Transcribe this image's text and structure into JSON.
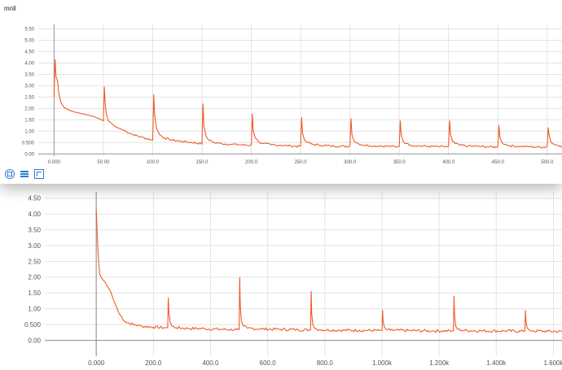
{
  "colors": {
    "series": "#f05a28",
    "grid": "#e3e3e3",
    "axis": "#9a9a9a",
    "tool": "#2c7bd6"
  },
  "top_panel": {
    "title": "mnll"
  },
  "toolbar": {
    "icons": [
      "fit-domain-icon",
      "list-icon",
      "expand-icon"
    ]
  },
  "chart_data": [
    {
      "type": "line",
      "title": "mnll",
      "xlim": [
        -16,
        515
      ],
      "ylim": [
        -0.1,
        5.7
      ],
      "x_ticks": [
        "0.000",
        "50.00",
        "100.0",
        "150.0",
        "200.0",
        "250.0",
        "300.0",
        "350.0",
        "400.0",
        "450.0",
        "500.0"
      ],
      "x_tick_values": [
        0,
        50,
        100,
        150,
        200,
        250,
        300,
        350,
        400,
        450,
        500
      ],
      "y_ticks": [
        "0.00",
        "0.500",
        "1.00",
        "1.50",
        "2.00",
        "2.50",
        "3.00",
        "3.50",
        "4.00",
        "4.50",
        "5.00",
        "5.50"
      ],
      "y_tick_values": [
        0,
        0.5,
        1.0,
        1.5,
        2.0,
        2.5,
        3.0,
        3.5,
        4.0,
        4.5,
        5.0,
        5.5
      ],
      "series": [
        {
          "x": [
            0,
            1,
            2,
            3,
            4,
            5,
            7,
            10,
            14,
            20,
            30,
            40,
            48,
            50,
            51,
            52,
            53,
            55,
            58,
            62,
            70,
            80,
            90,
            99,
            100,
            101,
            102,
            104,
            107,
            112,
            120,
            130,
            140,
            149,
            150,
            151,
            152,
            154,
            157,
            162,
            170,
            180,
            190,
            199,
            200,
            201,
            202,
            204,
            207,
            212,
            220,
            230,
            240,
            249,
            250,
            251,
            252,
            254,
            257,
            262,
            270,
            280,
            290,
            299,
            300,
            301,
            302,
            304,
            307,
            312,
            320,
            330,
            340,
            349,
            350,
            351,
            352,
            354,
            357,
            362,
            370,
            380,
            390,
            399,
            400,
            401,
            402,
            404,
            407,
            412,
            420,
            430,
            440,
            449,
            450,
            451,
            452,
            454,
            457,
            462,
            470,
            480,
            490,
            499,
            500,
            501,
            502,
            504,
            507,
            512,
            515
          ],
          "y": [
            2.5,
            4.15,
            3.4,
            3.3,
            3.05,
            2.6,
            2.25,
            2.05,
            1.95,
            1.85,
            1.75,
            1.65,
            1.5,
            1.45,
            2.95,
            2.15,
            1.75,
            1.45,
            1.35,
            1.2,
            1.05,
            0.85,
            0.72,
            0.62,
            0.6,
            2.6,
            1.7,
            1.1,
            0.85,
            0.7,
            0.6,
            0.55,
            0.5,
            0.45,
            0.43,
            2.2,
            1.2,
            0.8,
            0.6,
            0.5,
            0.45,
            0.42,
            0.4,
            0.38,
            0.4,
            1.75,
            1.0,
            0.7,
            0.55,
            0.45,
            0.4,
            0.38,
            0.35,
            0.33,
            0.35,
            1.6,
            0.9,
            0.6,
            0.5,
            0.42,
            0.38,
            0.35,
            0.34,
            0.33,
            0.35,
            1.55,
            0.85,
            0.58,
            0.48,
            0.4,
            0.36,
            0.35,
            0.33,
            0.32,
            0.33,
            1.45,
            0.85,
            0.55,
            0.45,
            0.38,
            0.35,
            0.33,
            0.32,
            0.31,
            0.33,
            1.45,
            0.85,
            0.55,
            0.45,
            0.38,
            0.34,
            0.33,
            0.31,
            0.3,
            0.32,
            1.25,
            0.75,
            0.5,
            0.42,
            0.36,
            0.33,
            0.32,
            0.3,
            0.3,
            0.32,
            1.15,
            0.8,
            0.5,
            0.42,
            0.36,
            0.34
          ]
        }
      ]
    },
    {
      "type": "line",
      "title": "",
      "xlim": [
        -180,
        1630
      ],
      "ylim": [
        -0.5,
        4.7
      ],
      "x_ticks": [
        "0.000",
        "200.0",
        "400.0",
        "600.0",
        "800.0",
        "1.000k",
        "1.200k",
        "1.400k",
        "1.600k"
      ],
      "x_tick_values": [
        0,
        200,
        400,
        600,
        800,
        1000,
        1200,
        1400,
        1600
      ],
      "y_ticks": [
        "0.00",
        "0.500",
        "1.00",
        "1.50",
        "2.00",
        "2.50",
        "3.00",
        "3.50",
        "4.00",
        "4.50"
      ],
      "y_tick_values": [
        0,
        0.5,
        1.0,
        1.5,
        2.0,
        2.5,
        3.0,
        3.5,
        4.0,
        4.5
      ],
      "series": [
        {
          "x": [
            0,
            2,
            4,
            8,
            12,
            20,
            30,
            40,
            50,
            60,
            80,
            100,
            130,
            160,
            200,
            240,
            250,
            252,
            254,
            258,
            265,
            280,
            320,
            380,
            440,
            490,
            500,
            502,
            504,
            508,
            515,
            530,
            580,
            640,
            700,
            745,
            750,
            752,
            754,
            758,
            765,
            780,
            850,
            920,
            990,
            1000,
            1002,
            1004,
            1008,
            1015,
            1030,
            1100,
            1180,
            1245,
            1250,
            1252,
            1254,
            1258,
            1265,
            1280,
            1350,
            1430,
            1495,
            1500,
            1502,
            1504,
            1508,
            1515,
            1530,
            1580,
            1630
          ],
          "y": [
            4.15,
            3.7,
            3.2,
            2.5,
            2.1,
            1.95,
            1.85,
            1.7,
            1.55,
            1.3,
            0.85,
            0.6,
            0.5,
            0.45,
            0.42,
            0.4,
            0.4,
            1.35,
            0.9,
            0.6,
            0.45,
            0.4,
            0.38,
            0.37,
            0.35,
            0.34,
            0.34,
            2.0,
            1.1,
            0.6,
            0.45,
            0.38,
            0.36,
            0.35,
            0.34,
            0.33,
            0.33,
            1.55,
            0.85,
            0.5,
            0.38,
            0.34,
            0.32,
            0.32,
            0.31,
            0.31,
            0.95,
            0.6,
            0.42,
            0.35,
            0.32,
            0.31,
            0.3,
            0.3,
            0.3,
            1.4,
            0.8,
            0.45,
            0.35,
            0.32,
            0.3,
            0.3,
            0.29,
            0.29,
            0.95,
            0.6,
            0.4,
            0.33,
            0.3,
            0.29,
            0.28
          ]
        }
      ]
    }
  ]
}
